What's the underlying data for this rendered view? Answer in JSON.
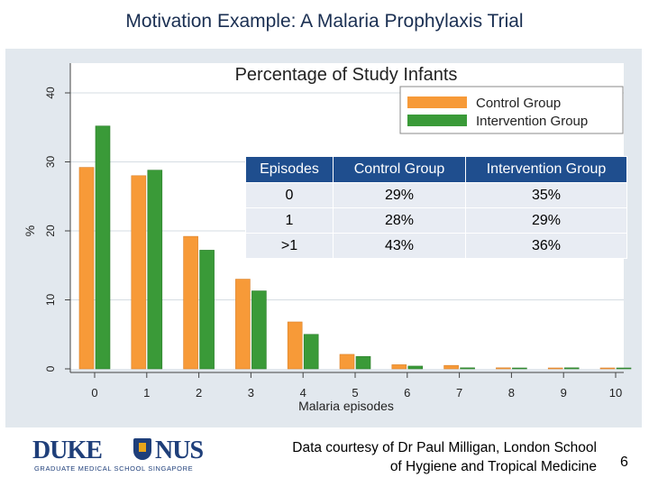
{
  "slide": {
    "title": "Motivation Example: A Malaria Prophylaxis Trial",
    "page_number": "6",
    "credit_line1": "Data courtesy of Dr Paul Milligan, London School",
    "credit_line2": "of Hygiene and Tropical Medicine"
  },
  "logo": {
    "left_word": "DUKE",
    "right_word": "NUS",
    "subtitle": "GRADUATE MEDICAL SCHOOL SINGAPORE"
  },
  "chart_data": {
    "type": "bar",
    "title": "Percentage of Study Infants",
    "xlabel": "Malaria episodes",
    "ylabel": "%",
    "ylim": [
      0,
      40
    ],
    "yticks": [
      0,
      10,
      20,
      30,
      40
    ],
    "categories": [
      "0",
      "1",
      "2",
      "3",
      "4",
      "5",
      "6",
      "7",
      "8",
      "9",
      "10"
    ],
    "series": [
      {
        "name": "Control Group",
        "color": "#f79a38",
        "values": [
          29.2,
          28,
          19.2,
          13,
          6.8,
          2.1,
          0.6,
          0.5,
          0.15,
          0.1,
          0.1
        ]
      },
      {
        "name": "Intervention Group",
        "color": "#3a9a38",
        "values": [
          35.2,
          28.8,
          17.2,
          11.3,
          5,
          1.8,
          0.4,
          0.15,
          0.05,
          0.15,
          0.05
        ]
      }
    ],
    "grid": true,
    "legend_position": "top-right",
    "table": {
      "headers": [
        "Episodes",
        "Control Group",
        "Intervention Group"
      ],
      "rows": [
        [
          "0",
          "29%",
          "35%"
        ],
        [
          "1",
          "28%",
          "29%"
        ],
        [
          ">1",
          "43%",
          "36%"
        ]
      ]
    }
  }
}
